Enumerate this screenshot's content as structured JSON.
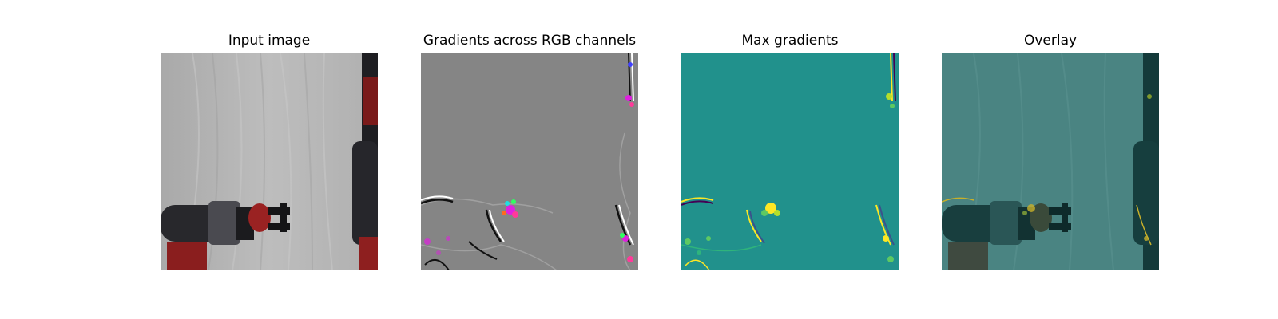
{
  "figure": {
    "panels": [
      {
        "id": "input",
        "title": "Input image"
      },
      {
        "id": "rgb_gradients",
        "title": "Gradients across RGB channels"
      },
      {
        "id": "max_gradients",
        "title": "Max gradients"
      },
      {
        "id": "overlay",
        "title": "Overlay"
      }
    ]
  },
  "colors": {
    "backdrop_gray": "#b4b4b4",
    "robot_dark": "#2a2a2e",
    "robot_red": "#8e1f1f",
    "gradient_neutral": "#858585",
    "gradient_magenta": "#e020e0",
    "viridis_base": "#21918c",
    "viridis_yellow": "#fde725",
    "viridis_green": "#5ec962",
    "viridis_dark": "#440154",
    "overlay_base": "#4a8482"
  }
}
